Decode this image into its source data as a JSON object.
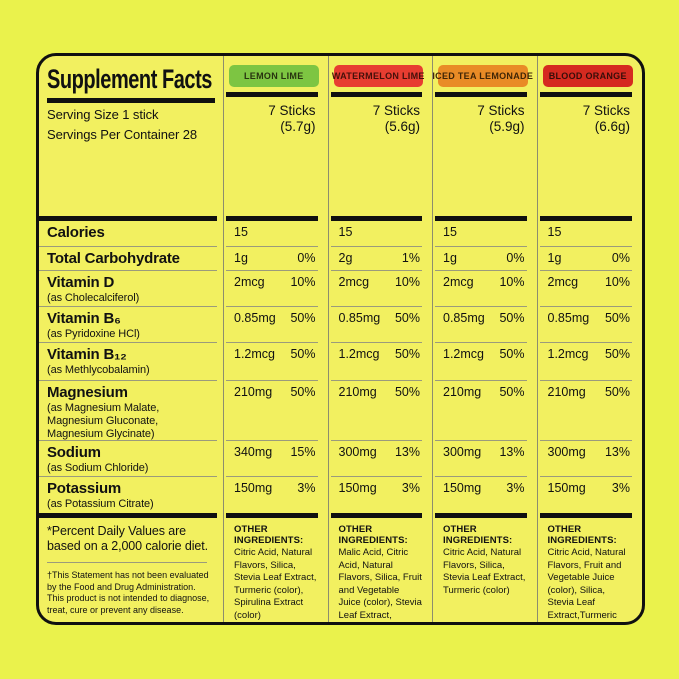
{
  "palette": {
    "background": "#eaf24c",
    "panel": "#f2f060",
    "bar_black": "#101010",
    "rule_gray": "#9b9b7c"
  },
  "header": {
    "title": "Supplement Facts",
    "serving_size": "Serving Size 1 stick",
    "servings_per_container": "Servings Per Container 28"
  },
  "columns": [
    {
      "flavor": "LEMON LIME",
      "badge_color": "#7dc542",
      "badge_text_color": "#27330f",
      "sticks": "7 Sticks",
      "weight": "(5.7g)",
      "other_header": "OTHER INGREDIENTS:",
      "other_body": "Citric Acid, Natural Flavors, Silica, Stevia Leaf Extract, Turmeric (color), Spirulina Extract (color)"
    },
    {
      "flavor": "WATERMELON LIME",
      "badge_color": "#e73d31",
      "badge_text_color": "#45100a",
      "sticks": "7 Sticks",
      "weight": "(5.6g)",
      "other_header": "OTHER INGREDIENTS:",
      "other_body": "Malic Acid, Citric Acid, Natural Flavors, Silica, Fruit and Vegetable Juice (color), Stevia Leaf Extract, Turmeric (color)"
    },
    {
      "flavor": "ICED TEA LEMONADE",
      "badge_color": "#e98b26",
      "badge_text_color": "#3f2506",
      "sticks": "7 Sticks",
      "weight": "(5.9g)",
      "other_header": "OTHER INGREDIENTS:",
      "other_body": "Citric Acid, Natural Flavors, Silica, Stevia Leaf Extract, Turmeric (color)"
    },
    {
      "flavor": "BLOOD ORANGE",
      "badge_color": "#d52a20",
      "badge_text_color": "#380d09",
      "sticks": "7 Sticks",
      "weight": "(6.6g)",
      "other_header": "OTHER INGREDIENTS:",
      "other_body": "Citric Acid, Natural Flavors, Fruit and Vegetable Juice (color), Silica, Stevia Leaf Extract,Turmeric (color)"
    }
  ],
  "rows": [
    {
      "name": "Calories",
      "sub": "",
      "values": [
        {
          "amt": "15",
          "dv": ""
        },
        {
          "amt": "15",
          "dv": ""
        },
        {
          "amt": "15",
          "dv": ""
        },
        {
          "amt": "15",
          "dv": ""
        }
      ]
    },
    {
      "name": "Total Carbohydrate",
      "sub": "",
      "values": [
        {
          "amt": "1g",
          "dv": "0%"
        },
        {
          "amt": "2g",
          "dv": "1%"
        },
        {
          "amt": "1g",
          "dv": "0%"
        },
        {
          "amt": "1g",
          "dv": "0%"
        }
      ]
    },
    {
      "name": "Vitamin D",
      "sub": "(as Cholecalciferol)",
      "values": [
        {
          "amt": "2mcg",
          "dv": "10%"
        },
        {
          "amt": "2mcg",
          "dv": "10%"
        },
        {
          "amt": "2mcg",
          "dv": "10%"
        },
        {
          "amt": "2mcg",
          "dv": "10%"
        }
      ]
    },
    {
      "name": "Vitamin B₆",
      "sub": "(as Pyridoxine HCl)",
      "values": [
        {
          "amt": "0.85mg",
          "dv": "50%"
        },
        {
          "amt": "0.85mg",
          "dv": "50%"
        },
        {
          "amt": "0.85mg",
          "dv": "50%"
        },
        {
          "amt": "0.85mg",
          "dv": "50%"
        }
      ]
    },
    {
      "name": "Vitamin B₁₂",
      "sub": "(as Methlycobalamin)",
      "values": [
        {
          "amt": "1.2mcg",
          "dv": "50%"
        },
        {
          "amt": "1.2mcg",
          "dv": "50%"
        },
        {
          "amt": "1.2mcg",
          "dv": "50%"
        },
        {
          "amt": "1.2mcg",
          "dv": "50%"
        }
      ]
    },
    {
      "name": "Magnesium",
      "sub": "(as Magnesium Malate, Magnesium Gluconate, Magnesium Glycinate)",
      "values": [
        {
          "amt": "210mg",
          "dv": "50%"
        },
        {
          "amt": "210mg",
          "dv": "50%"
        },
        {
          "amt": "210mg",
          "dv": "50%"
        },
        {
          "amt": "210mg",
          "dv": "50%"
        }
      ]
    },
    {
      "name": "Sodium",
      "sub": "(as Sodium Chloride)",
      "values": [
        {
          "amt": "340mg",
          "dv": "15%"
        },
        {
          "amt": "300mg",
          "dv": "13%"
        },
        {
          "amt": "300mg",
          "dv": "13%"
        },
        {
          "amt": "300mg",
          "dv": "13%"
        }
      ]
    },
    {
      "name": "Potassium",
      "sub": "(as Potassium Citrate)",
      "values": [
        {
          "amt": "150mg",
          "dv": "3%"
        },
        {
          "amt": "150mg",
          "dv": "3%"
        },
        {
          "amt": "150mg",
          "dv": "3%"
        },
        {
          "amt": "150mg",
          "dv": "3%"
        }
      ]
    }
  ],
  "footnotes": {
    "daily_value": "*Percent Daily Values are based on a 2,000 calorie diet.",
    "fda": "†This Statement has not been evaluated by the Food and Drug Administration. This product is not intended to diagnose, treat, cure or prevent any disease."
  }
}
